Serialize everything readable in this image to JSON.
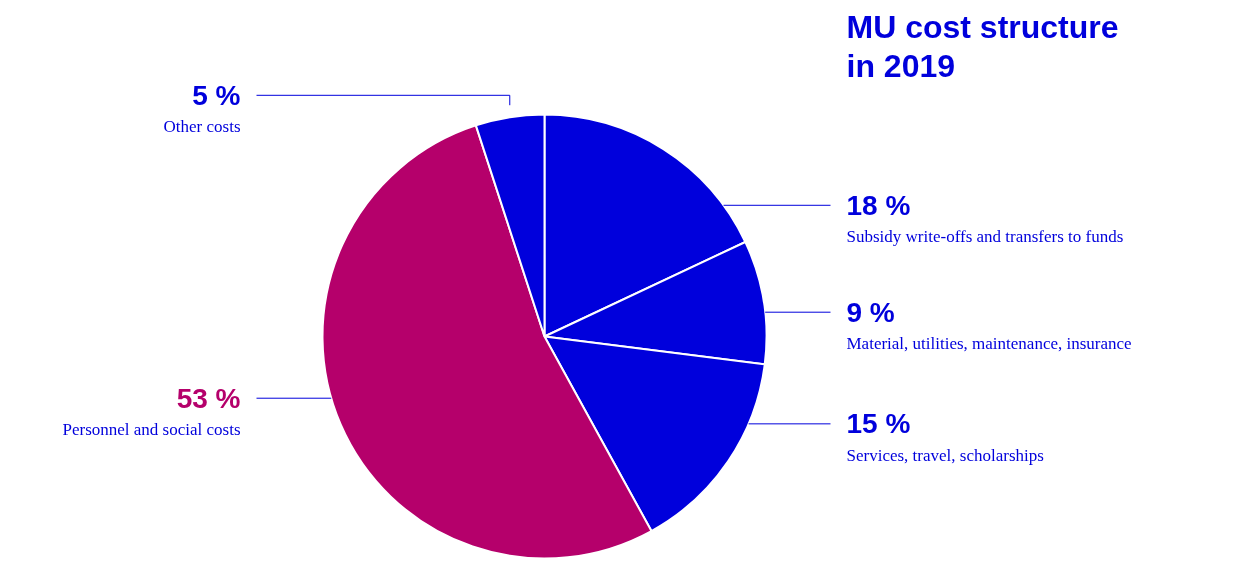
{
  "chart_data": {
    "type": "pie",
    "title": "MU cost structure in 2019",
    "categories": [
      "Subsidy write-offs and transfers to funds",
      "Material, utilities, maintenance, insurance",
      "Services, travel, scholarships",
      "Personnel and social costs",
      "Other costs"
    ],
    "values": [
      18,
      9,
      15,
      53,
      5
    ],
    "value_labels": [
      "18 %",
      "9 %",
      "15 %",
      "53 %",
      "5 %"
    ],
    "colors": [
      "#0000dc",
      "#0000dc",
      "#0000dc",
      "#b5006b",
      "#0000dc"
    ]
  }
}
